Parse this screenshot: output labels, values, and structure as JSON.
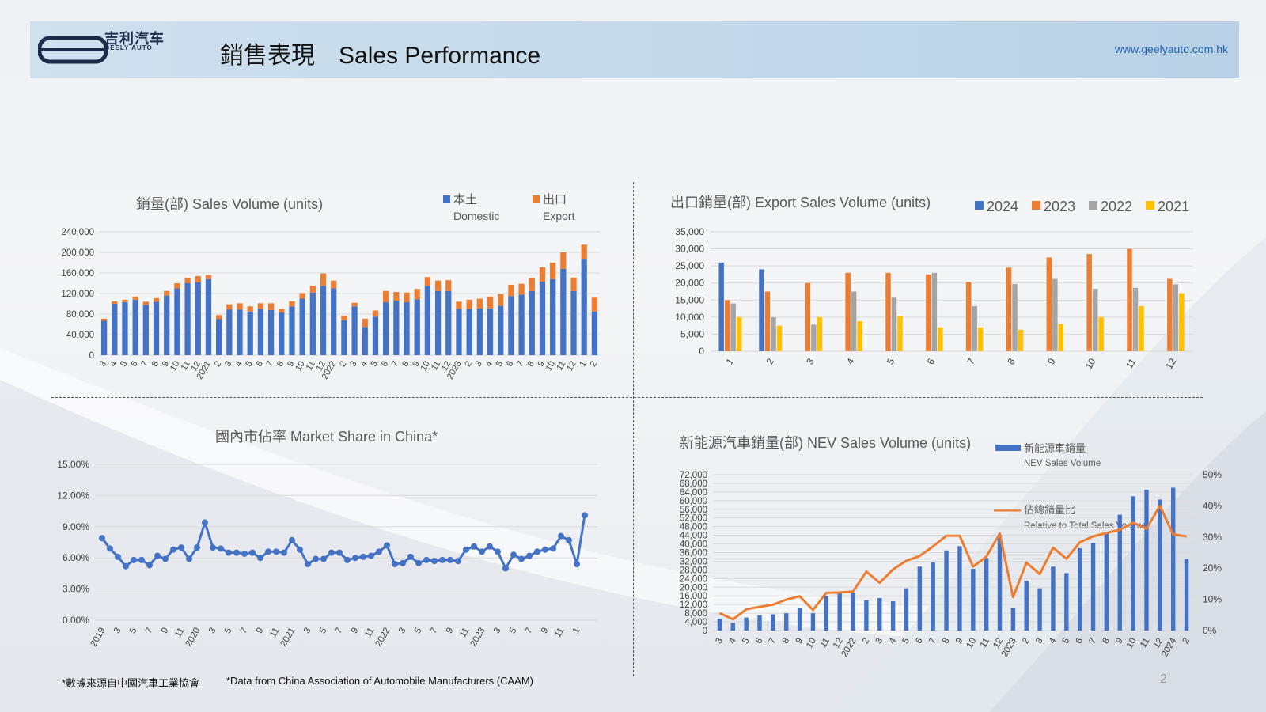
{
  "header": {
    "logo_cn": "吉利汽车",
    "logo_en": "GEELY AUTO",
    "title": "銷售表現　Sales Performance",
    "website": "www.geelyauto.com.hk"
  },
  "footnotes": {
    "cn": "*數據來源自中國汽車工業協會",
    "en": "*Data from China Association of Automobile Manufacturers (CAAM)"
  },
  "page_number": "2",
  "colors": {
    "blue": "#4472C4",
    "orange": "#ED7D31",
    "gray": "#A5A5A5",
    "yellow": "#FFC000",
    "line_blue": "#4472C4",
    "header_bg": "#c5daeb",
    "website": "#1f63b0"
  },
  "chart_data": [
    {
      "id": "sales",
      "type": "bar",
      "stacked": true,
      "title": "銷量(部)  Sales Volume (units)",
      "categories": [
        "3",
        "4",
        "5",
        "6",
        "7",
        "8",
        "9",
        "10",
        "11",
        "12",
        "2021",
        "2",
        "3",
        "4",
        "5",
        "6",
        "7",
        "8",
        "9",
        "10",
        "11",
        "12",
        "2022",
        "2",
        "3",
        "4",
        "5",
        "6",
        "7",
        "8",
        "9",
        "10",
        "11",
        "12",
        "2023",
        "2",
        "3",
        "4",
        "5",
        "6",
        "7",
        "8",
        "9",
        "10",
        "11",
        "12",
        "1",
        "2"
      ],
      "series": [
        {
          "name": "本土 Domestic",
          "legend_cn": "本土",
          "legend_en": "Domestic",
          "values": [
            67000,
            100000,
            103000,
            108000,
            98000,
            104000,
            116000,
            130000,
            140000,
            142000,
            148000,
            70000,
            89000,
            89000,
            85000,
            90000,
            88000,
            83000,
            95000,
            110000,
            122000,
            135000,
            130000,
            68000,
            95000,
            55000,
            75000,
            103000,
            106000,
            103000,
            109000,
            135000,
            125000,
            125000,
            90000,
            90000,
            91000,
            91000,
            96000,
            115000,
            118000,
            125000,
            143000,
            148000,
            168000,
            125000,
            186000,
            85000
          ]
        },
        {
          "name": "出口 Export",
          "legend_cn": "出口",
          "legend_en": "Export",
          "values": [
            4000,
            5000,
            5000,
            6000,
            6000,
            7000,
            9000,
            10000,
            10000,
            12000,
            8000,
            8000,
            10000,
            12000,
            10000,
            11000,
            13000,
            7000,
            10000,
            11000,
            13000,
            24000,
            15000,
            9000,
            7000,
            16000,
            12000,
            22000,
            17000,
            19000,
            20000,
            17000,
            20000,
            21000,
            14000,
            18000,
            19000,
            23000,
            23000,
            22000,
            21000,
            25000,
            28000,
            32000,
            32000,
            26000,
            29000,
            27000
          ]
        }
      ],
      "ylim": [
        0,
        240000
      ],
      "yticks": [
        "0",
        "40,000",
        "80,000",
        "120,000",
        "160,000",
        "200,000",
        "240,000"
      ]
    },
    {
      "id": "export",
      "type": "bar",
      "title": "出口銷量(部)  Export Sales Volume (units)",
      "categories": [
        "1",
        "2",
        "3",
        "4",
        "5",
        "6",
        "7",
        "8",
        "9",
        "10",
        "11",
        "12"
      ],
      "series": [
        {
          "name": "2024",
          "values": [
            26000,
            24000,
            null,
            null,
            null,
            null,
            null,
            null,
            null,
            null,
            null,
            null
          ]
        },
        {
          "name": "2023",
          "values": [
            15000,
            17500,
            20000,
            23000,
            23000,
            22500,
            20300,
            24500,
            27500,
            28500,
            30000,
            21200
          ]
        },
        {
          "name": "2022",
          "values": [
            14000,
            10000,
            7800,
            17500,
            15700,
            23000,
            13200,
            19700,
            21200,
            18300,
            18600,
            19600
          ]
        },
        {
          "name": "2021",
          "values": [
            10000,
            7500,
            10000,
            8800,
            10300,
            7000,
            7000,
            6300,
            8000,
            10000,
            13200,
            17000
          ]
        }
      ],
      "ylim": [
        0,
        35000
      ],
      "yticks": [
        "0",
        "5,000",
        "10,000",
        "15,000",
        "20,000",
        "25,000",
        "30,000",
        "35,000"
      ]
    },
    {
      "id": "share",
      "type": "line",
      "title": "國內市佔率  Market Share in China*",
      "x_labels": [
        "2019",
        "3",
        "5",
        "7",
        "9",
        "11",
        "2020",
        "3",
        "5",
        "7",
        "9",
        "11",
        "2021",
        "3",
        "5",
        "7",
        "9",
        "11",
        "2022",
        "3",
        "5",
        "7",
        "9",
        "11",
        "2023",
        "3",
        "5",
        "7",
        "9",
        "11",
        "1"
      ],
      "values": [
        7.9,
        6.9,
        6.1,
        5.2,
        5.8,
        5.8,
        5.3,
        6.2,
        5.9,
        6.8,
        7.0,
        5.9,
        7.0,
        9.4,
        7.0,
        6.9,
        6.5,
        6.5,
        6.4,
        6.5,
        6.0,
        6.6,
        6.6,
        6.5,
        7.7,
        6.8,
        5.4,
        5.9,
        5.9,
        6.5,
        6.5,
        5.8,
        6.0,
        6.1,
        6.2,
        6.6,
        7.2,
        5.4,
        5.5,
        6.1,
        5.5,
        5.8,
        5.7,
        5.8,
        5.8,
        5.7,
        6.8,
        7.1,
        6.6,
        7.1,
        6.6,
        5.0,
        6.3,
        5.9,
        6.2,
        6.6,
        6.8,
        6.9,
        8.1,
        7.7,
        5.4,
        10.1
      ],
      "ylim": [
        0,
        15
      ],
      "yticks": [
        "0.00%",
        "3.00%",
        "6.00%",
        "9.00%",
        "12.00%",
        "15.00%"
      ]
    },
    {
      "id": "nev",
      "type": "bar+line",
      "title": "新能源汽車銷量(部)  NEV Sales Volume (units)",
      "categories": [
        "3",
        "4",
        "5",
        "6",
        "7",
        "8",
        "9",
        "10",
        "11",
        "12",
        "2022",
        "2",
        "3",
        "4",
        "5",
        "6",
        "7",
        "8",
        "9",
        "10",
        "11",
        "12",
        "2023",
        "2",
        "3",
        "4",
        "5",
        "6",
        "7",
        "8",
        "9",
        "10",
        "11",
        "12",
        "2024",
        "2"
      ],
      "bar_series": {
        "name": "新能源車銷量",
        "name_en": "NEV Sales Volume",
        "values": [
          5500,
          3500,
          6000,
          7000,
          7500,
          8000,
          10500,
          8000,
          16000,
          18000,
          17500,
          14000,
          15000,
          13500,
          19500,
          29500,
          31500,
          37000,
          39000,
          28500,
          33500,
          44000,
          10500,
          23000,
          19500,
          29500,
          26500,
          38000,
          40500,
          45500,
          53500,
          62000,
          65000,
          60500,
          66000,
          33000
        ]
      },
      "line_series": {
        "name": "佔總銷量比",
        "name_en": "Relative to Total Sales Volume",
        "values": [
          5.6,
          3.6,
          6.8,
          7.6,
          8.3,
          9.9,
          11.0,
          6.6,
          12.1,
          12.2,
          12.5,
          18.9,
          15.3,
          19.6,
          22.4,
          23.9,
          27.0,
          30.4,
          30.4,
          20.5,
          23.7,
          31.1,
          10.7,
          21.8,
          18.1,
          26.6,
          23.0,
          28.3,
          30.2,
          31.3,
          32.3,
          34.6,
          32.6,
          40.0,
          30.8,
          30.2
        ]
      },
      "ylim": [
        0,
        72000
      ],
      "yticks": [
        "0",
        "4,000",
        "8,000",
        "12,000",
        "16,000",
        "20,000",
        "24,000",
        "28,000",
        "32,000",
        "36,000",
        "40,000",
        "44,000",
        "48,000",
        "52,000",
        "56,000",
        "60,000",
        "64,000",
        "68,000",
        "72,000"
      ],
      "y2lim": [
        0,
        50
      ],
      "y2ticks": [
        "0%",
        "10%",
        "20%",
        "30%",
        "40%",
        "50%"
      ]
    }
  ]
}
